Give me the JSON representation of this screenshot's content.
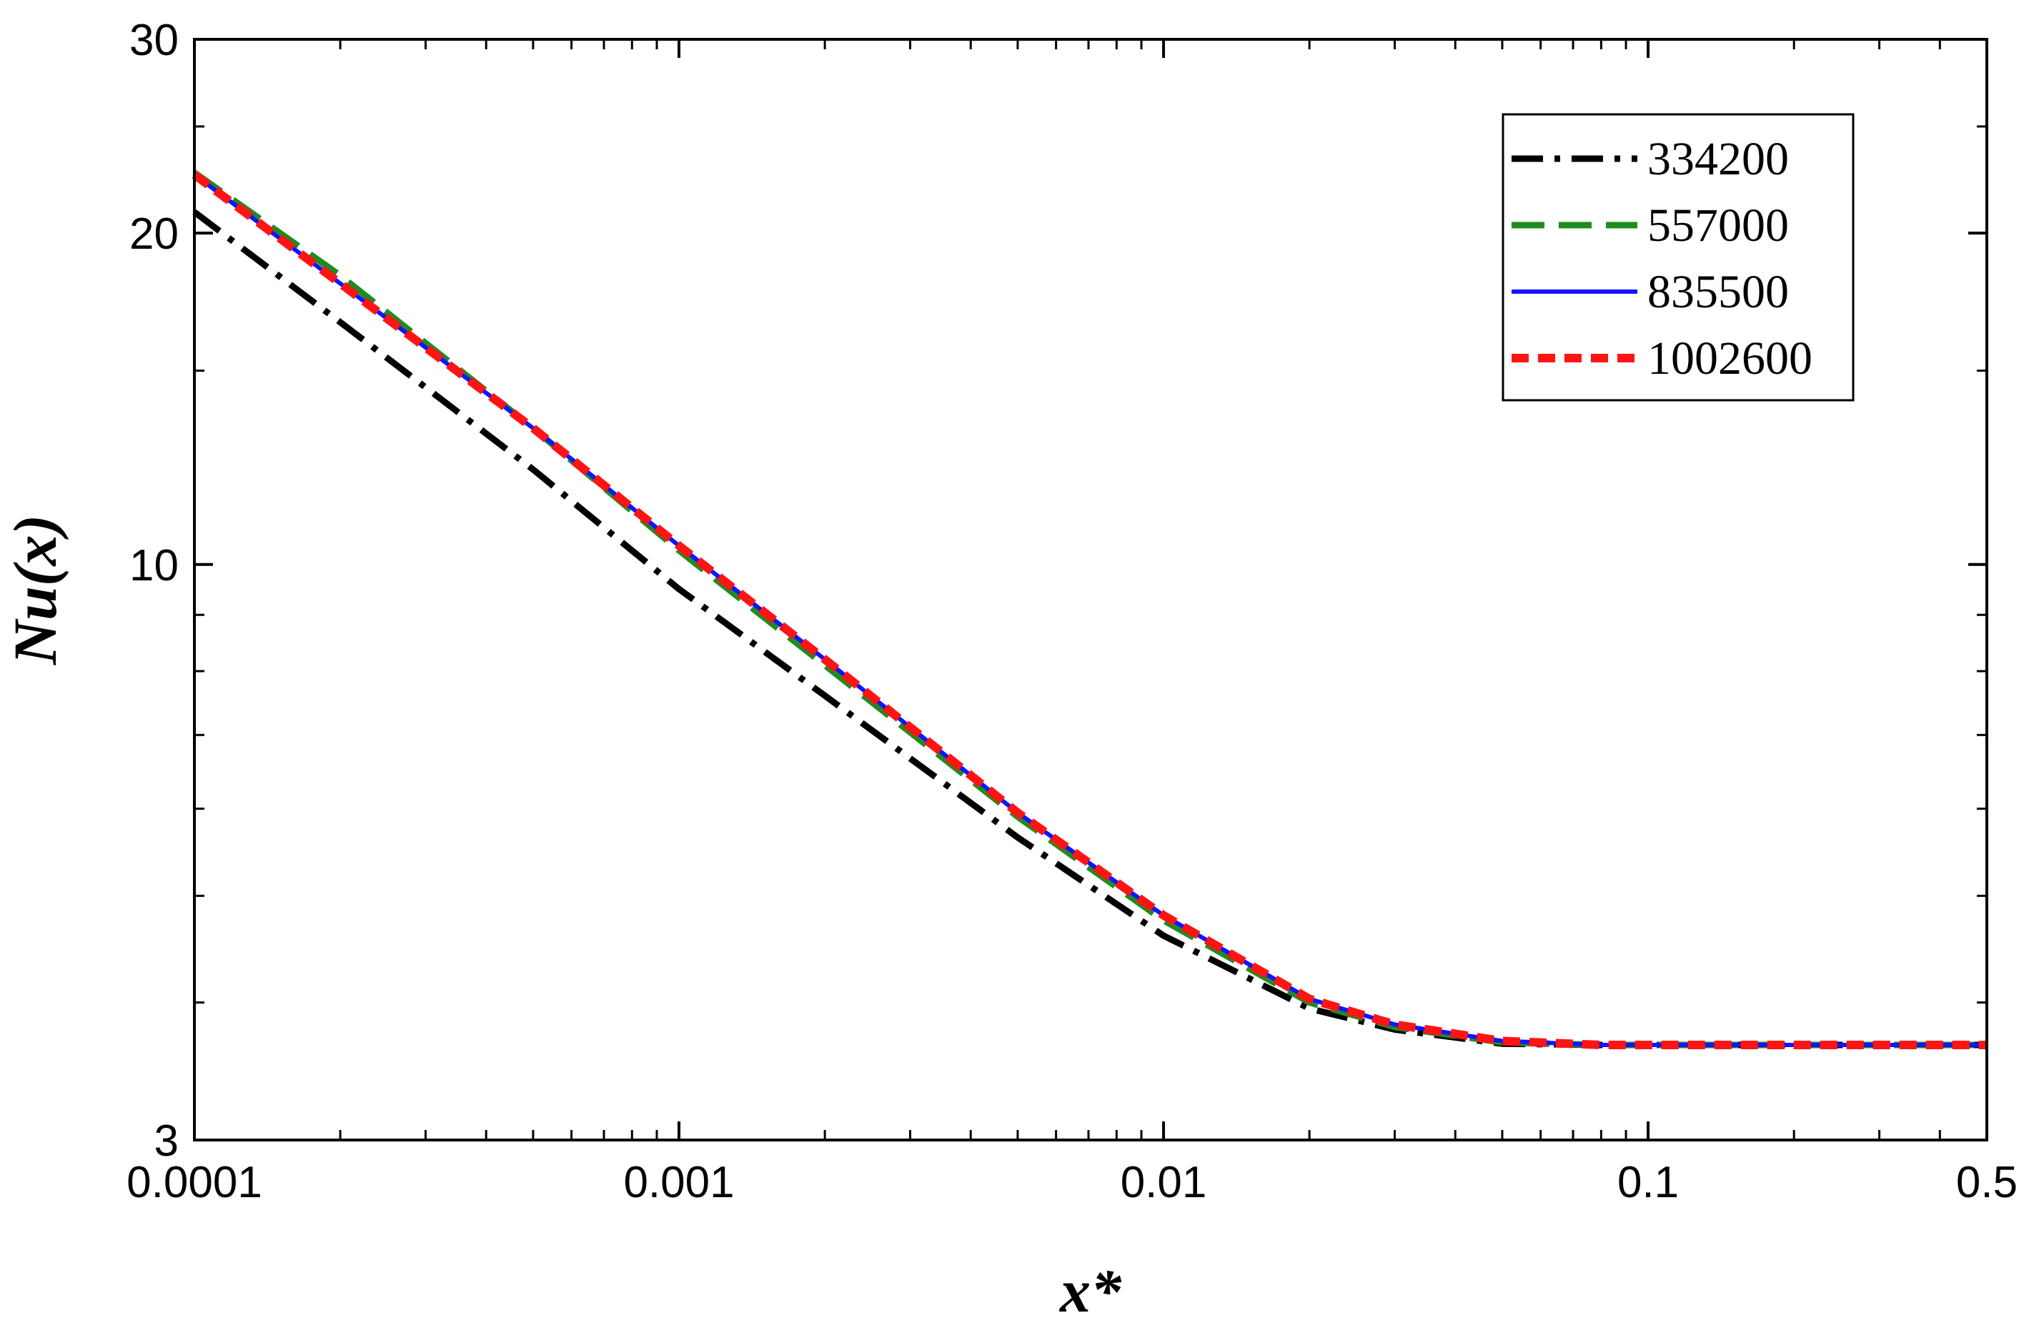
{
  "chart_data": {
    "type": "line",
    "title": "",
    "xlabel": "x*",
    "ylabel": "Nu(x)",
    "x_scale": "log",
    "y_scale": "log",
    "xlim": [
      0.0001,
      0.5
    ],
    "ylim": [
      3,
      30
    ],
    "x_ticks": [
      {
        "value": 0.0001,
        "label": "0.0001"
      },
      {
        "value": 0.001,
        "label": "0.001"
      },
      {
        "value": 0.01,
        "label": "0.01"
      },
      {
        "value": 0.1,
        "label": "0.1"
      },
      {
        "value": 0.5,
        "label": "0.5"
      }
    ],
    "y_ticks": [
      {
        "value": 3,
        "label": "3"
      },
      {
        "value": 10,
        "label": "10"
      },
      {
        "value": 20,
        "label": "20"
      },
      {
        "value": 30,
        "label": "30"
      }
    ],
    "grid": false,
    "legend_position": "top-right",
    "series": [
      {
        "name": "334200",
        "color": "#000000",
        "dash": "dash-dot",
        "points": [
          [
            0.0001,
            20.9
          ],
          [
            0.0002,
            16.6
          ],
          [
            0.0005,
            12.2
          ],
          [
            0.001,
            9.5
          ],
          [
            0.002,
            7.6
          ],
          [
            0.005,
            5.65
          ],
          [
            0.01,
            4.6
          ],
          [
            0.02,
            3.95
          ],
          [
            0.03,
            3.78
          ],
          [
            0.05,
            3.67
          ],
          [
            0.08,
            3.66
          ],
          [
            0.1,
            3.66
          ],
          [
            0.2,
            3.66
          ],
          [
            0.5,
            3.66
          ]
        ]
      },
      {
        "name": "557000",
        "color": "#1e8c1e",
        "dash": "long-dash",
        "points": [
          [
            0.0001,
            22.7
          ],
          [
            0.0002,
            18.3
          ],
          [
            0.0005,
            13.3
          ],
          [
            0.001,
            10.3
          ],
          [
            0.002,
            8.1
          ],
          [
            0.005,
            5.9
          ],
          [
            0.01,
            4.75
          ],
          [
            0.02,
            4.0
          ],
          [
            0.03,
            3.8
          ],
          [
            0.05,
            3.68
          ],
          [
            0.08,
            3.66
          ],
          [
            0.1,
            3.66
          ],
          [
            0.2,
            3.66
          ],
          [
            0.5,
            3.66
          ]
        ]
      },
      {
        "name": "835500",
        "color": "#1414ff",
        "dash": "solid",
        "points": [
          [
            0.0001,
            22.6
          ],
          [
            0.0002,
            18.0
          ],
          [
            0.0005,
            13.3
          ],
          [
            0.001,
            10.4
          ],
          [
            0.002,
            8.2
          ],
          [
            0.005,
            5.95
          ],
          [
            0.01,
            4.8
          ],
          [
            0.02,
            4.03
          ],
          [
            0.03,
            3.82
          ],
          [
            0.05,
            3.69
          ],
          [
            0.08,
            3.66
          ],
          [
            0.1,
            3.66
          ],
          [
            0.2,
            3.66
          ],
          [
            0.5,
            3.66
          ]
        ]
      },
      {
        "name": "1002600",
        "color": "#ff1414",
        "dash": "short-dash",
        "points": [
          [
            0.0001,
            22.6
          ],
          [
            0.0002,
            18.0
          ],
          [
            0.0005,
            13.3
          ],
          [
            0.001,
            10.4
          ],
          [
            0.002,
            8.2
          ],
          [
            0.005,
            5.95
          ],
          [
            0.01,
            4.8
          ],
          [
            0.02,
            4.03
          ],
          [
            0.03,
            3.82
          ],
          [
            0.05,
            3.69
          ],
          [
            0.08,
            3.66
          ],
          [
            0.1,
            3.66
          ],
          [
            0.2,
            3.66
          ],
          [
            0.5,
            3.66
          ]
        ]
      }
    ]
  }
}
